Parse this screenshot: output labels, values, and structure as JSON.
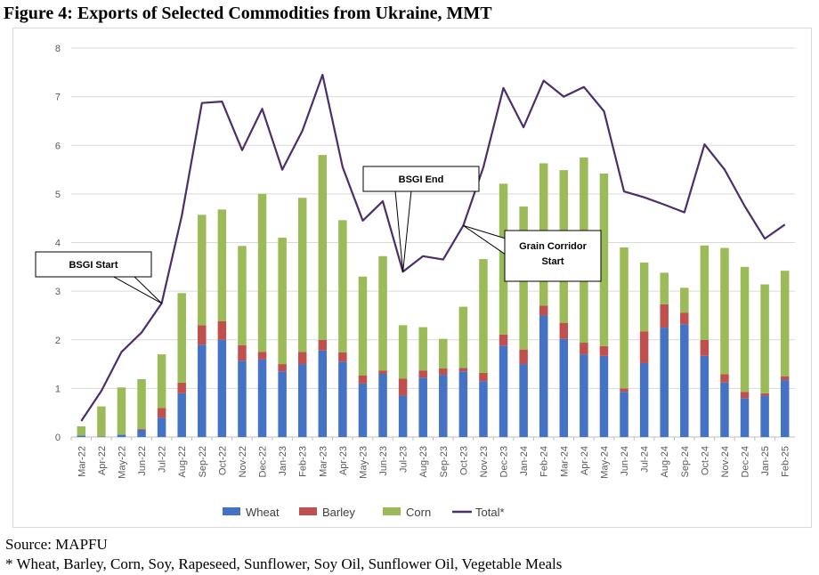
{
  "title": "Figure 4: Exports of Selected Commodities from Ukraine, MMT",
  "source": "Source: MAPFU",
  "footnote": "* Wheat, Barley, Corn, Soy, Rapeseed, Sunflower, Soy Oil, Sunflower Oil, Vegetable Meals",
  "colors": {
    "wheat": "#4472c4",
    "barley": "#c0504d",
    "corn": "#9bbb59",
    "total": "#4b2e6b",
    "grid": "#d9d9d9",
    "axis": "#bfbfbf"
  },
  "chart_data": {
    "type": "bar",
    "stacked": true,
    "title": "",
    "xlabel": "",
    "ylabel": "",
    "ylim": [
      0,
      8
    ],
    "yticks": [
      "0",
      "1",
      "2",
      "3",
      "4",
      "5",
      "6",
      "7",
      "8"
    ],
    "grid": true,
    "legend_position": "bottom",
    "categories": [
      "Mar-22",
      "Apr-22",
      "May-22",
      "Jun-22",
      "Jul-22",
      "Aug-22",
      "Sep-22",
      "Oct-22",
      "Nov-22",
      "Dec-22",
      "Jan-23",
      "Feb-23",
      "Mar-23",
      "Apr-23",
      "May-23",
      "Jun-23",
      "Jul-23",
      "Aug-23",
      "Sep-23",
      "Oct-23",
      "Nov-23",
      "Dec-23",
      "Jan-24",
      "Feb-24",
      "Mar-24",
      "Apr-24",
      "May-24",
      "Jun-24",
      "Jul-24",
      "Aug-24",
      "Sep-24",
      "Oct-24",
      "Nov-24",
      "Dec-24",
      "Jan-25",
      "Feb-25"
    ],
    "series": [
      {
        "name": "Wheat",
        "kind": "bar",
        "color": "#4472c4",
        "values": [
          0.03,
          0.01,
          0.05,
          0.15,
          0.4,
          0.9,
          1.9,
          2.0,
          1.57,
          1.6,
          1.35,
          1.5,
          1.78,
          1.55,
          1.1,
          1.3,
          0.85,
          1.22,
          1.28,
          1.35,
          1.15,
          1.88,
          1.5,
          2.5,
          2.02,
          1.7,
          1.67,
          0.93,
          1.52,
          2.25,
          2.32,
          1.67,
          1.12,
          0.8,
          0.85,
          1.17
        ]
      },
      {
        "name": "Barley",
        "kind": "bar",
        "color": "#c0504d",
        "values": [
          0.0,
          0.0,
          0.0,
          0.02,
          0.2,
          0.22,
          0.4,
          0.38,
          0.32,
          0.15,
          0.15,
          0.25,
          0.22,
          0.19,
          0.17,
          0.07,
          0.35,
          0.15,
          0.13,
          0.07,
          0.17,
          0.23,
          0.3,
          0.2,
          0.33,
          0.24,
          0.2,
          0.07,
          0.65,
          0.48,
          0.24,
          0.33,
          0.17,
          0.13,
          0.05,
          0.08
        ]
      },
      {
        "name": "Corn",
        "kind": "bar",
        "color": "#9bbb59",
        "values": [
          0.19,
          0.62,
          0.97,
          1.02,
          1.1,
          1.84,
          2.27,
          2.3,
          2.04,
          3.25,
          2.6,
          3.17,
          3.8,
          2.72,
          2.03,
          2.35,
          1.1,
          0.89,
          0.61,
          1.26,
          2.34,
          3.1,
          2.94,
          2.93,
          3.14,
          3.81,
          3.55,
          2.9,
          1.42,
          0.65,
          0.51,
          1.94,
          2.6,
          2.57,
          2.24,
          2.17
        ]
      },
      {
        "name": "Total*",
        "kind": "line",
        "color": "#4b2e6b",
        "values": [
          0.33,
          0.95,
          1.75,
          2.15,
          2.75,
          4.55,
          6.87,
          6.9,
          5.9,
          6.75,
          5.5,
          6.3,
          7.45,
          5.55,
          4.45,
          4.85,
          3.4,
          3.72,
          3.65,
          4.35,
          5.55,
          7.18,
          6.37,
          7.33,
          7.0,
          7.2,
          6.7,
          5.05,
          4.93,
          4.78,
          4.62,
          6.02,
          5.5,
          4.75,
          4.08,
          4.37
        ]
      }
    ],
    "annotations": [
      {
        "name": "bsgi-start",
        "text": "BSGI Start",
        "points_to": "Jul-22"
      },
      {
        "name": "bsgi-end",
        "text": "BSGI End",
        "points_to": "Jul-23"
      },
      {
        "name": "grain-corridor-start",
        "text": "Grain Corridor Start",
        "points_to": "Oct-23"
      }
    ]
  }
}
